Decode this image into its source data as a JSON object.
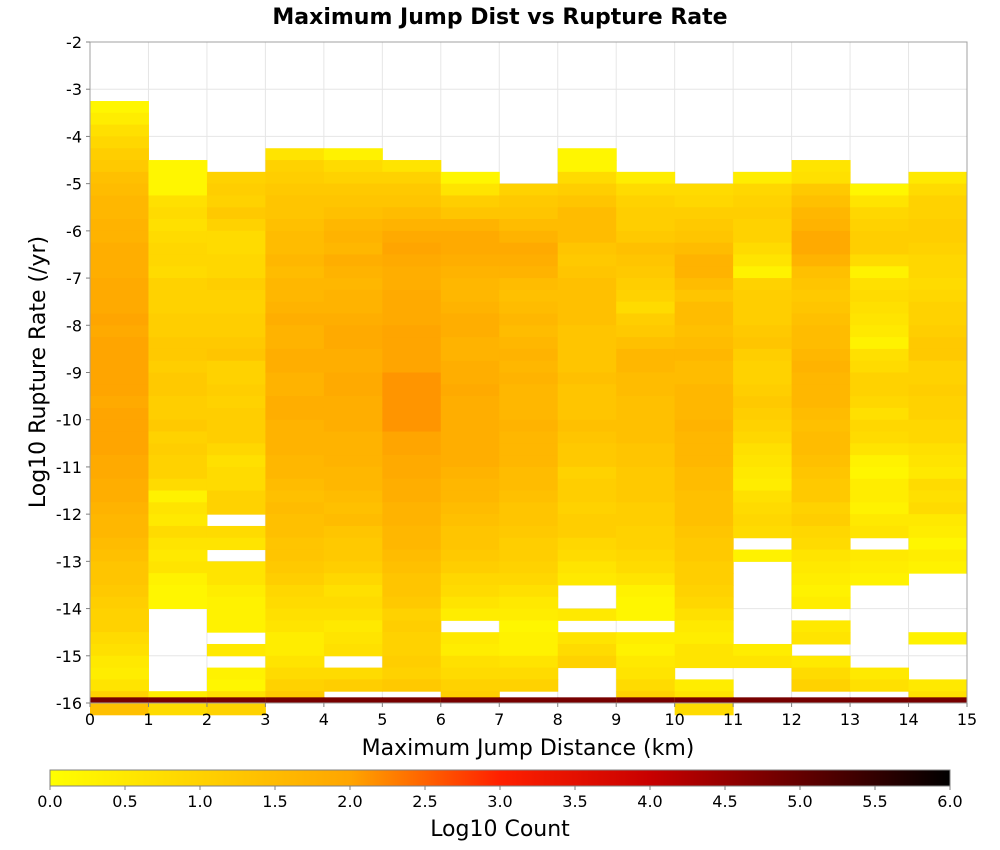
{
  "chart_data": {
    "type": "heatmap",
    "title": "Maximum Jump Dist vs Rupture Rate",
    "xlabel": "Maximum Jump Distance (km)",
    "ylabel": "Log10 Rupture Rate (/yr)",
    "xlim": [
      0,
      15
    ],
    "ylim": [
      -16,
      -2
    ],
    "x_ticks": [
      "0",
      "1",
      "2",
      "3",
      "4",
      "5",
      "6",
      "7",
      "8",
      "9",
      "10",
      "11",
      "12",
      "13",
      "14",
      "15"
    ],
    "y_ticks": [
      "-2",
      "-3",
      "-4",
      "-5",
      "-6",
      "-7",
      "-8",
      "-9",
      "-10",
      "-11",
      "-12",
      "-13",
      "-14",
      "-15",
      "-16"
    ],
    "x_bin_width": 1,
    "y_bin_width": 0.25,
    "grid": true,
    "colorbar": {
      "label": "Log10 Count",
      "min": 0,
      "max": 6,
      "ticks": [
        "0.0",
        "0.5",
        "1.0",
        "1.5",
        "2.0",
        "2.5",
        "3.0",
        "3.5",
        "4.0",
        "4.5",
        "5.0",
        "5.5",
        "6.0"
      ],
      "placement": "bottom",
      "colormap": [
        "#ffff00",
        "#ffa500",
        "#ff0000",
        "#000000"
      ]
    },
    "columns": [
      {
        "x": 0,
        "y_top": -3.25,
        "bottom_value": 4.6,
        "values": [
          0.2,
          0.4,
          0.7,
          0.9,
          1.1,
          1.2,
          1.4,
          1.5,
          1.6,
          1.6,
          1.7,
          1.7,
          1.8,
          1.8,
          1.8,
          1.9,
          1.9,
          1.9,
          2.0,
          1.9,
          2.0,
          2.0,
          2.0,
          2.0,
          2.0,
          1.9,
          2.0,
          2.0,
          2.0,
          2.0,
          1.9,
          1.9,
          1.8,
          1.8,
          1.7,
          1.6,
          1.6,
          1.5,
          1.4,
          1.3,
          1.3,
          1.2,
          1.1,
          1.0,
          1.0,
          0.8,
          0.7,
          0.5,
          0.4,
          0.6,
          1.0,
          1.4
        ]
      },
      {
        "x": 1,
        "y_top": -4.5,
        "bottom_value": 4.6,
        "values": [
          0.2,
          0.2,
          0.2,
          0.7,
          0.8,
          0.7,
          0.8,
          0.9,
          0.9,
          0.8,
          1.0,
          1.0,
          1.0,
          1.1,
          1.1,
          1.2,
          1.2,
          1.1,
          1.2,
          1.2,
          1.1,
          1.1,
          1.2,
          1.0,
          1.1,
          1.0,
          1.0,
          0.8,
          0.3,
          0.6,
          0.5,
          0.8,
          0.6,
          0.5,
          0.6,
          0.3,
          0.2,
          0.2,
          null,
          null,
          null,
          null,
          null,
          null,
          null,
          0.4,
          0.8
        ]
      },
      {
        "x": 2,
        "y_top": -4.75,
        "bottom_value": 4.6,
        "values": [
          1.0,
          1.1,
          1.0,
          1.2,
          1.0,
          0.8,
          0.8,
          0.9,
          0.9,
          1.1,
          1.0,
          1.0,
          1.1,
          1.1,
          1.2,
          1.3,
          1.0,
          1.0,
          1.1,
          1.0,
          1.1,
          1.1,
          1.1,
          0.9,
          0.7,
          0.8,
          0.8,
          1.0,
          1.0,
          null,
          0.8,
          0.6,
          null,
          0.6,
          0.6,
          0.4,
          0.3,
          0.3,
          0.3,
          null,
          0.5,
          null,
          0.3,
          0.2,
          0.7,
          1.0
        ]
      },
      {
        "x": 3,
        "y_top": -4.25,
        "bottom_value": 4.6,
        "values": [
          0.6,
          1.0,
          1.1,
          1.2,
          1.3,
          1.3,
          1.4,
          1.5,
          1.5,
          1.6,
          1.5,
          1.6,
          1.6,
          1.7,
          1.8,
          1.7,
          1.7,
          1.8,
          1.8,
          1.7,
          1.7,
          1.8,
          1.8,
          1.7,
          1.7,
          1.7,
          1.6,
          1.6,
          1.5,
          1.4,
          1.5,
          1.4,
          1.4,
          1.3,
          1.3,
          1.2,
          1.1,
          0.9,
          0.8,
          0.7,
          0.6,
          0.4,
          0.4,
          0.6,
          0.8,
          1.0,
          1.2
        ]
      },
      {
        "x": 4,
        "y_top": -4.25,
        "bottom_value": 4.6,
        "values": [
          0.3,
          0.8,
          1.0,
          1.2,
          1.3,
          1.4,
          1.6,
          1.7,
          1.6,
          1.8,
          1.7,
          1.6,
          1.7,
          1.7,
          1.8,
          1.9,
          1.9,
          1.8,
          1.8,
          1.9,
          1.9,
          1.8,
          1.8,
          1.8,
          1.7,
          1.7,
          1.7,
          1.6,
          1.6,
          1.5,
          1.4,
          1.5,
          1.3,
          1.2,
          1.2,
          1.1,
          0.9,
          0.7,
          0.8,
          0.7,
          0.5,
          0.6,
          0.7,
          null,
          0.8,
          1.1
        ]
      },
      {
        "x": 5,
        "y_top": -4.5,
        "bottom_value": 4.6,
        "values": [
          0.6,
          1.0,
          1.2,
          1.3,
          1.5,
          1.7,
          1.9,
          2.0,
          1.9,
          1.8,
          1.8,
          1.9,
          1.9,
          1.9,
          2.0,
          2.0,
          2.0,
          2.0,
          2.1,
          2.1,
          2.1,
          2.1,
          2.1,
          2.0,
          2.0,
          1.9,
          1.9,
          1.8,
          1.8,
          1.7,
          1.7,
          1.6,
          1.6,
          1.5,
          1.4,
          1.3,
          1.3,
          1.2,
          1.0,
          1.1,
          1.0,
          1.0,
          1.1,
          1.0,
          1.2
        ]
      },
      {
        "x": 6,
        "y_top": -4.75,
        "bottom_value": 4.6,
        "values": [
          0.2,
          0.6,
          1.1,
          1.3,
          1.7,
          1.9,
          1.9,
          1.8,
          1.7,
          1.6,
          1.6,
          1.7,
          1.8,
          1.8,
          1.7,
          1.7,
          1.8,
          1.8,
          1.9,
          1.8,
          1.8,
          1.8,
          1.8,
          1.8,
          1.8,
          1.7,
          1.6,
          1.6,
          1.5,
          1.4,
          1.3,
          1.3,
          1.2,
          1.1,
          0.9,
          0.8,
          0.6,
          0.4,
          null,
          0.5,
          0.4,
          0.7,
          0.8,
          1.0,
          1.1
        ]
      },
      {
        "x": 7,
        "y_top": -5.0,
        "bottom_value": 4.6,
        "values": [
          1.0,
          1.2,
          1.3,
          1.5,
          1.7,
          1.9,
          1.8,
          1.7,
          1.5,
          1.4,
          1.5,
          1.6,
          1.5,
          1.6,
          1.7,
          1.6,
          1.7,
          1.6,
          1.6,
          1.6,
          1.7,
          1.6,
          1.6,
          1.6,
          1.5,
          1.5,
          1.4,
          1.3,
          1.3,
          1.2,
          1.1,
          1.1,
          1.0,
          0.9,
          0.7,
          0.5,
          0.4,
          0.2,
          0.3,
          0.3,
          0.6,
          0.8,
          1.0
        ]
      },
      {
        "x": 8,
        "y_top": -4.25,
        "bottom_value": 4.6,
        "values": [
          0.2,
          0.2,
          0.8,
          1.1,
          1.3,
          1.5,
          1.5,
          1.5,
          1.3,
          1.2,
          1.3,
          1.4,
          1.4,
          1.4,
          1.4,
          1.3,
          1.3,
          1.3,
          1.3,
          1.4,
          1.3,
          1.3,
          1.3,
          1.4,
          1.3,
          1.2,
          1.2,
          1.0,
          1.1,
          1.1,
          1.0,
          1.1,
          1.1,
          0.9,
          0.8,
          0.6,
          0.5,
          null,
          null,
          0.5,
          null,
          0.6,
          0.8,
          1.0
        ]
      },
      {
        "x": 9,
        "y_top": -4.75,
        "bottom_value": 4.6,
        "values": [
          0.4,
          0.8,
          1.0,
          1.1,
          1.1,
          1.2,
          1.4,
          1.3,
          1.2,
          1.1,
          1.0,
          0.8,
          1.1,
          1.2,
          1.4,
          1.6,
          1.6,
          1.5,
          1.5,
          1.4,
          1.4,
          1.4,
          1.4,
          1.3,
          1.3,
          1.2,
          1.2,
          1.2,
          1.1,
          1.1,
          1.0,
          1.0,
          0.9,
          0.8,
          0.6,
          0.3,
          0.2,
          0.2,
          null,
          0.4,
          0.3,
          0.5,
          0.6,
          0.8,
          1.0
        ]
      },
      {
        "x": 10,
        "y_top": -5.0,
        "bottom_value": 4.6,
        "values": [
          0.8,
          0.9,
          1.1,
          1.2,
          1.3,
          1.5,
          1.7,
          1.7,
          1.5,
          1.3,
          1.5,
          1.5,
          1.4,
          1.5,
          1.6,
          1.5,
          1.5,
          1.6,
          1.6,
          1.6,
          1.7,
          1.6,
          1.6,
          1.6,
          1.5,
          1.5,
          1.4,
          1.4,
          1.4,
          1.3,
          1.2,
          1.2,
          1.1,
          1.1,
          1.0,
          0.9,
          0.7,
          0.5,
          0.4,
          0.6,
          0.6,
          null,
          0.4,
          0.6,
          0.8
        ]
      },
      {
        "x": 11,
        "y_top": -4.75,
        "bottom_value": 4.6,
        "values": [
          0.4,
          0.9,
          1.0,
          1.1,
          1.0,
          1.0,
          0.8,
          0.6,
          0.3,
          1.0,
          1.1,
          1.1,
          1.1,
          1.2,
          1.3,
          1.1,
          1.0,
          1.0,
          1.1,
          1.2,
          1.1,
          1.0,
          0.9,
          0.7,
          0.6,
          0.5,
          0.4,
          0.7,
          0.8,
          0.9,
          0.8,
          null,
          0.3,
          null,
          null,
          null,
          null,
          null,
          null,
          null,
          0.4,
          0.6
        ]
      },
      {
        "x": 12,
        "y_top": -4.5,
        "bottom_value": 4.6,
        "values": [
          0.6,
          0.7,
          1.2,
          1.4,
          1.6,
          1.7,
          1.9,
          1.9,
          1.7,
          1.4,
          1.3,
          1.2,
          1.3,
          1.4,
          1.5,
          1.5,
          1.6,
          1.7,
          1.6,
          1.6,
          1.6,
          1.5,
          1.4,
          1.5,
          1.5,
          1.4,
          1.3,
          1.2,
          1.2,
          1.0,
          1.1,
          0.9,
          0.8,
          0.6,
          0.5,
          0.4,
          0.3,
          0.4,
          null,
          0.5,
          0.6,
          null,
          0.5,
          0.8,
          1.0
        ]
      },
      {
        "x": 13,
        "y_top": -5.0,
        "bottom_value": 4.6,
        "values": [
          0.2,
          0.6,
          0.9,
          1.0,
          1.1,
          1.1,
          0.8,
          0.3,
          0.7,
          0.8,
          0.7,
          0.6,
          0.5,
          0.3,
          0.7,
          0.8,
          1.0,
          1.0,
          0.9,
          0.7,
          0.9,
          0.8,
          0.6,
          0.3,
          0.2,
          0.4,
          0.4,
          0.3,
          0.5,
          0.6,
          null,
          0.5,
          0.4,
          0.3,
          null,
          null,
          null,
          null,
          null,
          null,
          null,
          0.5,
          0.7
        ]
      },
      {
        "x": 14,
        "y_top": -4.75,
        "bottom_value": 4.6,
        "values": [
          0.5,
          0.8,
          1.0,
          1.0,
          1.1,
          1.1,
          1.0,
          0.9,
          0.9,
          0.8,
          0.9,
          1.0,
          1.0,
          1.1,
          1.2,
          1.2,
          1.0,
          1.0,
          1.1,
          1.0,
          1.0,
          0.9,
          0.9,
          0.7,
          0.6,
          0.5,
          0.8,
          0.7,
          0.8,
          0.5,
          0.4,
          0.2,
          0.4,
          0.3,
          null,
          null,
          null,
          null,
          null,
          0.3,
          null,
          null,
          null,
          0.5,
          0.7
        ]
      }
    ]
  }
}
